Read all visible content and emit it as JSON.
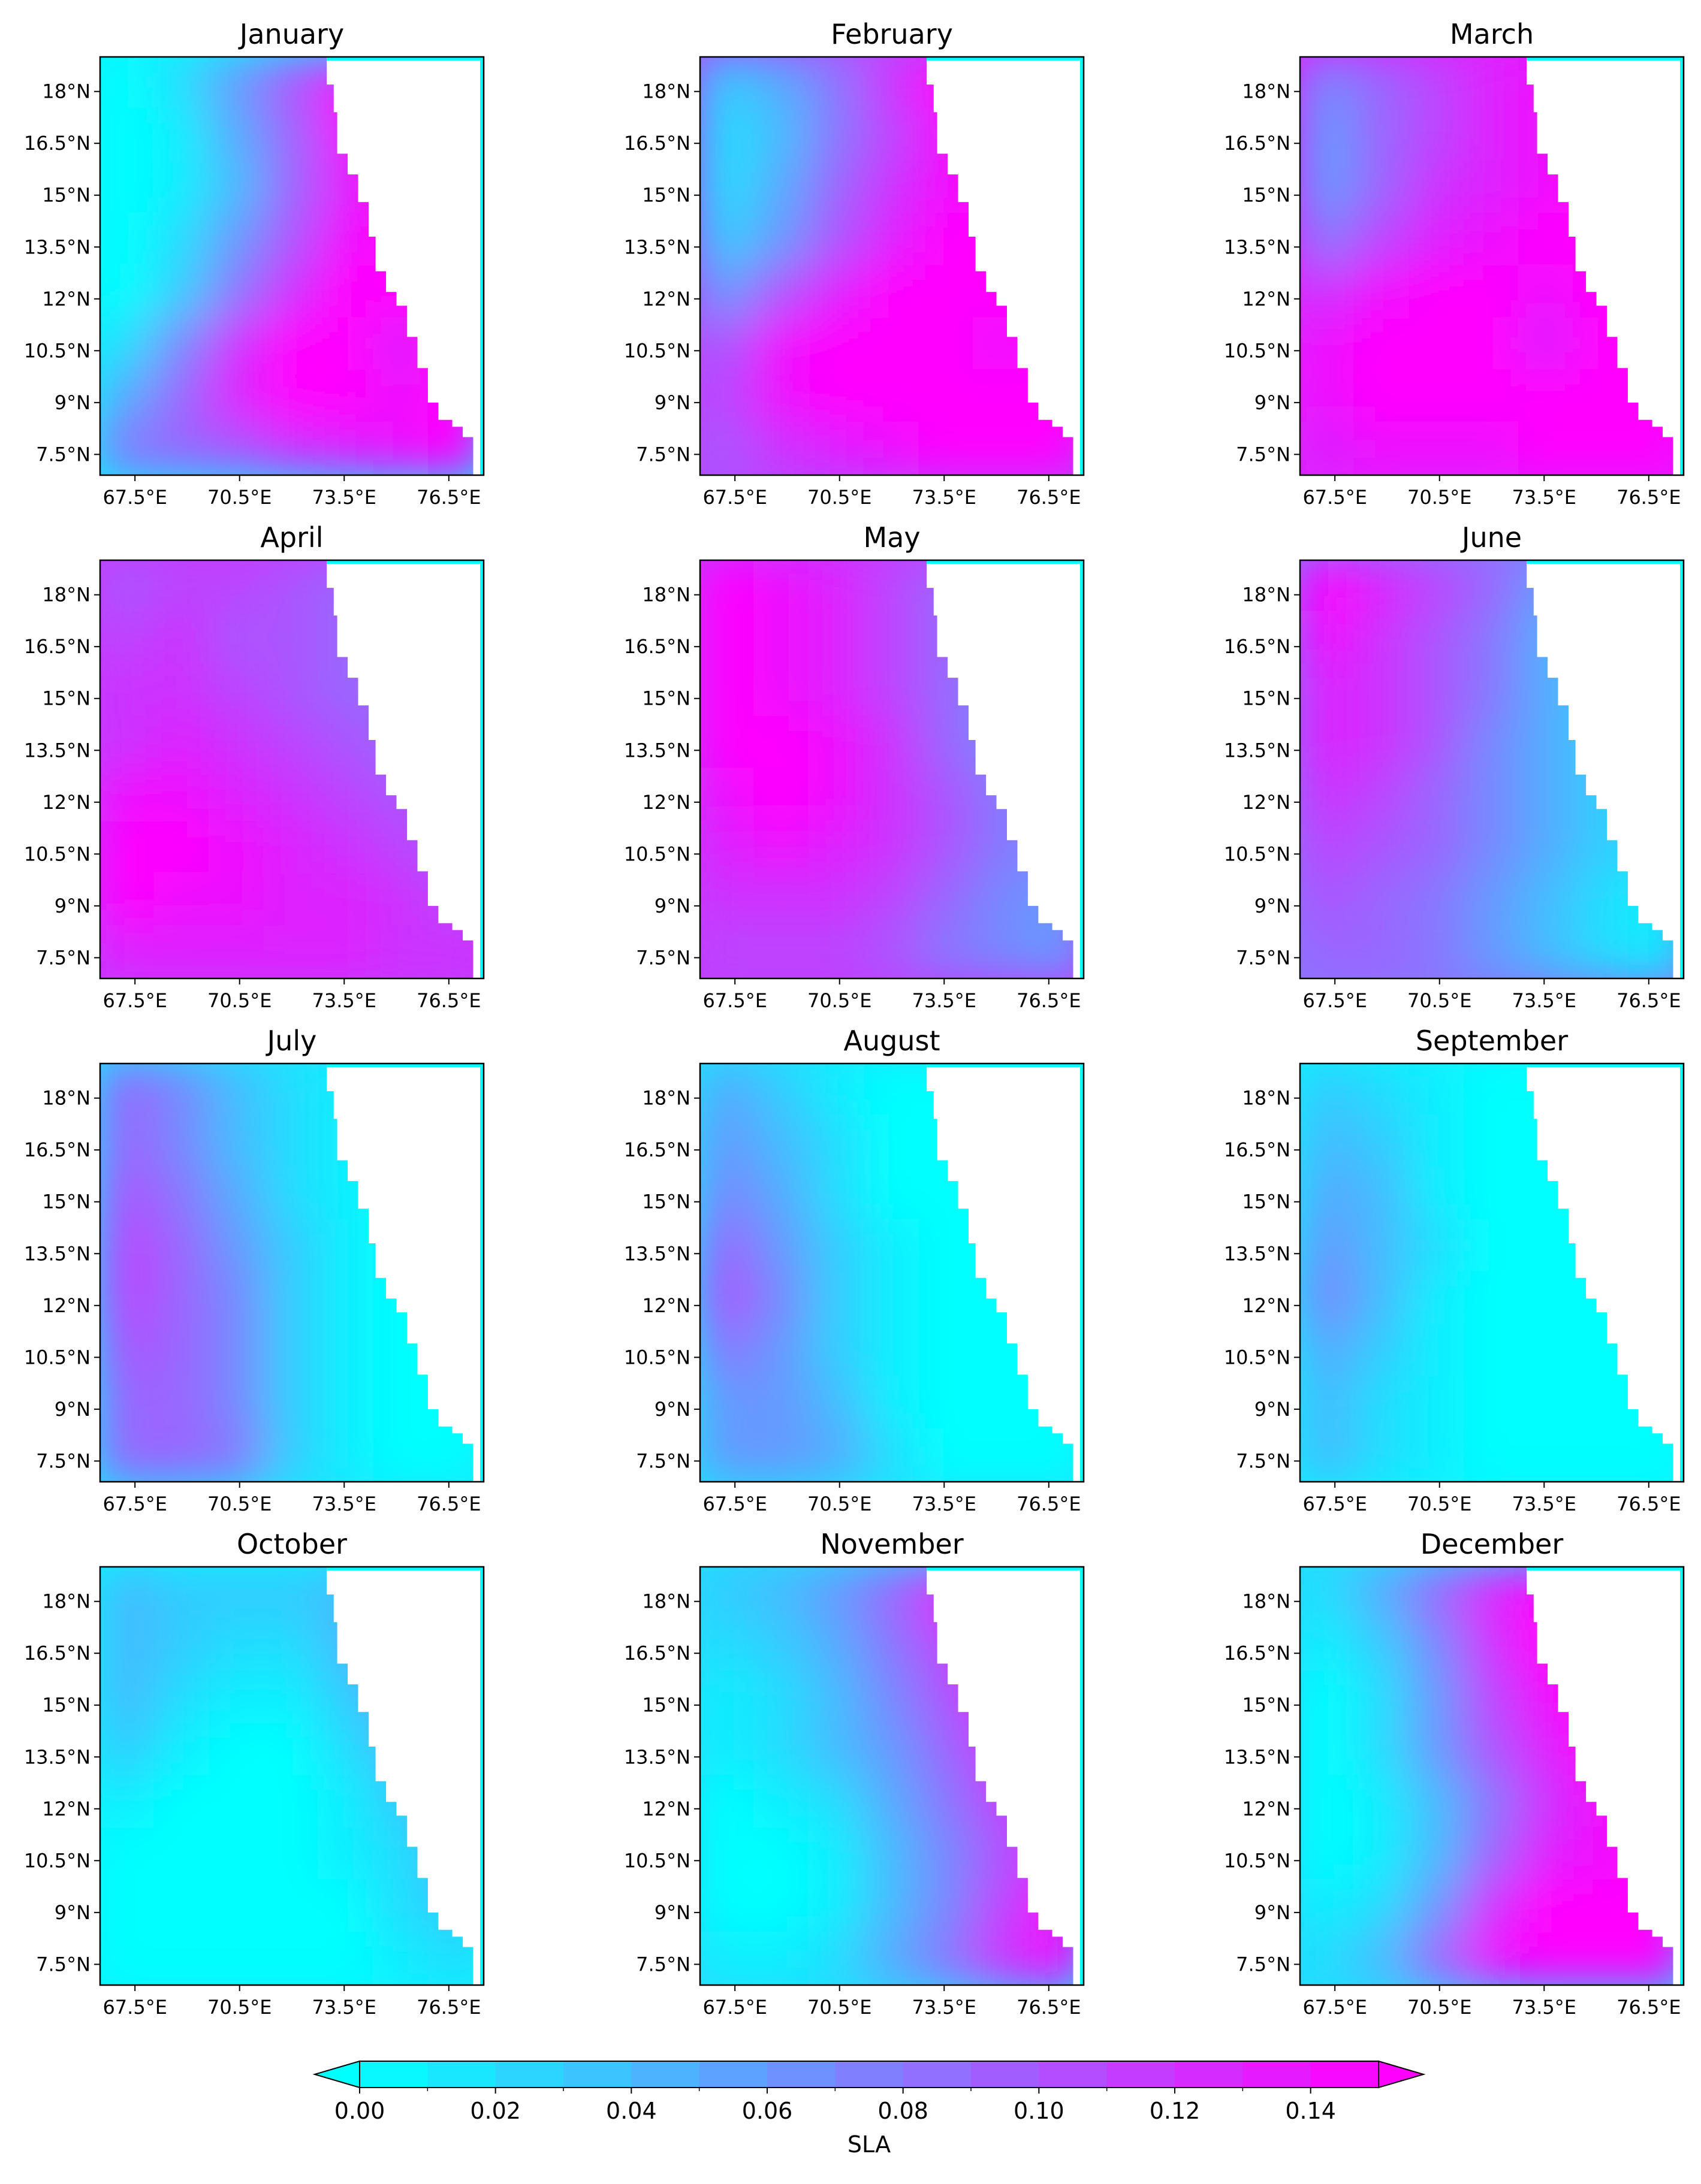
{
  "chart_data": {
    "type": "heatmap",
    "variable_label": "SLA",
    "colormap": {
      "low": "#00ffff",
      "high": "#ff00ff",
      "name": "cool"
    },
    "land_color": "#ffffff",
    "x_tick_labels": [
      "67.5°E",
      "70.5°E",
      "73.5°E",
      "76.5°E"
    ],
    "x_ticks": [
      67.5,
      70.5,
      73.5,
      76.5
    ],
    "y_tick_labels": [
      "7.5°N",
      "9°N",
      "10.5°N",
      "12°N",
      "13.5°N",
      "15°N",
      "16.5°N",
      "18°N"
    ],
    "y_ticks": [
      7.5,
      9,
      10.5,
      12,
      13.5,
      15,
      16.5,
      18
    ],
    "lon_range": [
      66.5,
      77.5
    ],
    "lat_range": [
      6.9,
      19
    ],
    "colorbar": {
      "label": "SLA",
      "range": [
        0.0,
        0.15
      ],
      "ticks": [
        0.0,
        0.02,
        0.04,
        0.06,
        0.08,
        0.1,
        0.12,
        0.14
      ],
      "tick_labels": [
        "0.00",
        "0.02",
        "0.04",
        "0.06",
        "0.08",
        "0.10",
        "0.12",
        "0.14"
      ],
      "extend": "both"
    },
    "panels": [
      {
        "title": "January",
        "approx_sla": [
          [
            0.0,
            0.02,
            0.06,
            0.1,
            0.14,
            0.15,
            0.15
          ],
          [
            0.0,
            0.01,
            0.05,
            0.09,
            0.14,
            0.15,
            0.15
          ],
          [
            0.0,
            0.01,
            0.04,
            0.09,
            0.13,
            0.15,
            0.15
          ],
          [
            0.0,
            0.02,
            0.06,
            0.1,
            0.14,
            0.15,
            0.15
          ],
          [
            0.0,
            0.03,
            0.08,
            0.12,
            0.15,
            0.15,
            0.15
          ],
          [
            0.02,
            0.07,
            0.12,
            0.15,
            0.15,
            0.13,
            0.15
          ],
          [
            0.05,
            0.09,
            0.13,
            0.15,
            0.15,
            0.14,
            0.15
          ],
          [
            0.08,
            0.09,
            0.1,
            0.12,
            0.13,
            0.14,
            0.15
          ]
        ]
      },
      {
        "title": "February",
        "approx_sla": [
          [
            0.03,
            0.05,
            0.08,
            0.12,
            0.15,
            0.15,
            0.15
          ],
          [
            0.02,
            0.04,
            0.08,
            0.11,
            0.14,
            0.15,
            0.15
          ],
          [
            0.02,
            0.05,
            0.09,
            0.12,
            0.14,
            0.15,
            0.15
          ],
          [
            0.03,
            0.06,
            0.1,
            0.13,
            0.15,
            0.15,
            0.15
          ],
          [
            0.06,
            0.1,
            0.13,
            0.15,
            0.15,
            0.15,
            0.15
          ],
          [
            0.1,
            0.14,
            0.15,
            0.15,
            0.15,
            0.14,
            0.15
          ],
          [
            0.11,
            0.14,
            0.15,
            0.15,
            0.15,
            0.15,
            0.15
          ],
          [
            0.1,
            0.12,
            0.13,
            0.14,
            0.15,
            0.15,
            0.15
          ]
        ]
      },
      {
        "title": "March",
        "approx_sla": [
          [
            0.07,
            0.09,
            0.11,
            0.13,
            0.14,
            0.15,
            0.15
          ],
          [
            0.06,
            0.09,
            0.11,
            0.13,
            0.14,
            0.15,
            0.15
          ],
          [
            0.06,
            0.09,
            0.12,
            0.13,
            0.14,
            0.15,
            0.15
          ],
          [
            0.08,
            0.11,
            0.13,
            0.14,
            0.15,
            0.15,
            0.15
          ],
          [
            0.12,
            0.14,
            0.15,
            0.15,
            0.14,
            0.15,
            0.15
          ],
          [
            0.14,
            0.15,
            0.15,
            0.15,
            0.13,
            0.15,
            0.15
          ],
          [
            0.14,
            0.15,
            0.15,
            0.15,
            0.15,
            0.15,
            0.15
          ],
          [
            0.13,
            0.14,
            0.14,
            0.14,
            0.15,
            0.15,
            0.15
          ]
        ]
      },
      {
        "title": "April",
        "approx_sla": [
          [
            0.1,
            0.11,
            0.11,
            0.1,
            0.09,
            0.09,
            0.09
          ],
          [
            0.11,
            0.12,
            0.1,
            0.1,
            0.09,
            0.09,
            0.09
          ],
          [
            0.12,
            0.12,
            0.11,
            0.1,
            0.09,
            0.09,
            0.09
          ],
          [
            0.12,
            0.13,
            0.12,
            0.11,
            0.1,
            0.09,
            0.09
          ],
          [
            0.14,
            0.14,
            0.13,
            0.12,
            0.11,
            0.1,
            0.1
          ],
          [
            0.15,
            0.15,
            0.14,
            0.13,
            0.12,
            0.11,
            0.1
          ],
          [
            0.15,
            0.14,
            0.14,
            0.13,
            0.13,
            0.12,
            0.11
          ],
          [
            0.13,
            0.13,
            0.13,
            0.13,
            0.13,
            0.12,
            0.12
          ]
        ]
      },
      {
        "title": "May",
        "approx_sla": [
          [
            0.15,
            0.14,
            0.13,
            0.11,
            0.09,
            0.08,
            0.07
          ],
          [
            0.15,
            0.14,
            0.13,
            0.11,
            0.09,
            0.08,
            0.07
          ],
          [
            0.15,
            0.14,
            0.13,
            0.11,
            0.09,
            0.07,
            0.07
          ],
          [
            0.15,
            0.15,
            0.14,
            0.12,
            0.09,
            0.07,
            0.07
          ],
          [
            0.14,
            0.15,
            0.14,
            0.12,
            0.1,
            0.08,
            0.07
          ],
          [
            0.13,
            0.14,
            0.13,
            0.12,
            0.1,
            0.08,
            0.07
          ],
          [
            0.12,
            0.12,
            0.12,
            0.11,
            0.09,
            0.07,
            0.06
          ],
          [
            0.11,
            0.11,
            0.11,
            0.1,
            0.08,
            0.07,
            0.06
          ]
        ]
      },
      {
        "title": "June",
        "approx_sla": [
          [
            0.15,
            0.13,
            0.11,
            0.09,
            0.06,
            0.03,
            0.02
          ],
          [
            0.14,
            0.12,
            0.1,
            0.08,
            0.05,
            0.03,
            0.02
          ],
          [
            0.13,
            0.12,
            0.1,
            0.08,
            0.05,
            0.03,
            0.02
          ],
          [
            0.13,
            0.12,
            0.1,
            0.07,
            0.05,
            0.03,
            0.02
          ],
          [
            0.12,
            0.11,
            0.09,
            0.07,
            0.05,
            0.03,
            0.02
          ],
          [
            0.11,
            0.1,
            0.09,
            0.07,
            0.05,
            0.03,
            0.02
          ],
          [
            0.1,
            0.09,
            0.08,
            0.06,
            0.04,
            0.02,
            0.01
          ],
          [
            0.09,
            0.09,
            0.08,
            0.06,
            0.04,
            0.02,
            0.01
          ]
        ]
      },
      {
        "title": "July",
        "approx_sla": [
          [
            0.09,
            0.07,
            0.04,
            0.02,
            0.01,
            0.0,
            0.0
          ],
          [
            0.09,
            0.07,
            0.04,
            0.02,
            0.01,
            0.0,
            0.0
          ],
          [
            0.1,
            0.08,
            0.05,
            0.02,
            0.01,
            0.0,
            0.0
          ],
          [
            0.11,
            0.09,
            0.06,
            0.03,
            0.01,
            0.0,
            0.0
          ],
          [
            0.11,
            0.09,
            0.07,
            0.03,
            0.01,
            0.0,
            0.0
          ],
          [
            0.1,
            0.09,
            0.07,
            0.03,
            0.01,
            0.0,
            0.0
          ],
          [
            0.09,
            0.09,
            0.07,
            0.03,
            0.01,
            0.0,
            0.0
          ],
          [
            0.09,
            0.09,
            0.08,
            0.03,
            0.01,
            0.0,
            0.0
          ]
        ]
      },
      {
        "title": "August",
        "approx_sla": [
          [
            0.05,
            0.03,
            0.01,
            0.0,
            0.0,
            0.0,
            0.0
          ],
          [
            0.06,
            0.04,
            0.02,
            0.0,
            0.0,
            0.0,
            0.0
          ],
          [
            0.07,
            0.05,
            0.02,
            0.0,
            0.0,
            0.0,
            0.0
          ],
          [
            0.09,
            0.06,
            0.03,
            0.01,
            0.0,
            0.0,
            0.0
          ],
          [
            0.1,
            0.07,
            0.03,
            0.01,
            0.0,
            0.0,
            0.0
          ],
          [
            0.08,
            0.06,
            0.03,
            0.01,
            0.0,
            0.0,
            0.0
          ],
          [
            0.06,
            0.06,
            0.04,
            0.01,
            0.0,
            0.0,
            0.0
          ],
          [
            0.06,
            0.06,
            0.05,
            0.02,
            0.0,
            0.0,
            0.0
          ]
        ]
      },
      {
        "title": "September",
        "approx_sla": [
          [
            0.03,
            0.02,
            0.01,
            0.0,
            0.0,
            0.0,
            0.0
          ],
          [
            0.04,
            0.03,
            0.01,
            0.0,
            0.0,
            0.0,
            0.0
          ],
          [
            0.05,
            0.04,
            0.01,
            0.0,
            0.0,
            0.0,
            0.0
          ],
          [
            0.06,
            0.04,
            0.02,
            0.0,
            0.0,
            0.0,
            0.0
          ],
          [
            0.07,
            0.04,
            0.01,
            0.0,
            0.0,
            0.0,
            0.0
          ],
          [
            0.05,
            0.03,
            0.01,
            0.0,
            0.0,
            0.0,
            0.0
          ],
          [
            0.04,
            0.02,
            0.01,
            0.0,
            0.0,
            0.0,
            0.0
          ],
          [
            0.04,
            0.02,
            0.01,
            0.0,
            0.0,
            0.0,
            0.0
          ]
        ]
      },
      {
        "title": "October",
        "approx_sla": [
          [
            0.04,
            0.03,
            0.03,
            0.03,
            0.04,
            0.05,
            0.05
          ],
          [
            0.04,
            0.03,
            0.02,
            0.02,
            0.04,
            0.05,
            0.05
          ],
          [
            0.04,
            0.02,
            0.01,
            0.01,
            0.03,
            0.05,
            0.05
          ],
          [
            0.03,
            0.01,
            0.0,
            0.0,
            0.02,
            0.04,
            0.05
          ],
          [
            0.01,
            0.0,
            0.0,
            0.0,
            0.01,
            0.03,
            0.04
          ],
          [
            0.0,
            0.0,
            0.0,
            0.0,
            0.01,
            0.02,
            0.04
          ],
          [
            0.0,
            0.0,
            0.0,
            0.0,
            0.0,
            0.02,
            0.03
          ],
          [
            0.0,
            0.0,
            0.0,
            0.0,
            0.0,
            0.01,
            0.02
          ]
        ]
      },
      {
        "title": "November",
        "approx_sla": [
          [
            0.03,
            0.04,
            0.06,
            0.09,
            0.13,
            0.14,
            0.14
          ],
          [
            0.02,
            0.03,
            0.05,
            0.08,
            0.11,
            0.14,
            0.14
          ],
          [
            0.01,
            0.02,
            0.04,
            0.07,
            0.1,
            0.13,
            0.14
          ],
          [
            0.01,
            0.02,
            0.04,
            0.06,
            0.09,
            0.12,
            0.14
          ],
          [
            0.0,
            0.01,
            0.02,
            0.05,
            0.08,
            0.11,
            0.13
          ],
          [
            0.0,
            0.0,
            0.01,
            0.04,
            0.07,
            0.1,
            0.13
          ],
          [
            0.0,
            0.0,
            0.01,
            0.04,
            0.07,
            0.11,
            0.14
          ],
          [
            0.01,
            0.01,
            0.02,
            0.05,
            0.08,
            0.12,
            0.14
          ]
        ]
      },
      {
        "title": "December",
        "approx_sla": [
          [
            0.02,
            0.05,
            0.09,
            0.13,
            0.15,
            0.15,
            0.15
          ],
          [
            0.01,
            0.03,
            0.07,
            0.12,
            0.15,
            0.15,
            0.15
          ],
          [
            0.0,
            0.02,
            0.06,
            0.11,
            0.14,
            0.15,
            0.15
          ],
          [
            0.0,
            0.02,
            0.06,
            0.1,
            0.13,
            0.15,
            0.15
          ],
          [
            0.0,
            0.01,
            0.04,
            0.08,
            0.12,
            0.14,
            0.15
          ],
          [
            0.0,
            0.01,
            0.04,
            0.09,
            0.13,
            0.14,
            0.15
          ],
          [
            0.01,
            0.02,
            0.06,
            0.12,
            0.15,
            0.15,
            0.15
          ],
          [
            0.02,
            0.04,
            0.09,
            0.14,
            0.15,
            0.15,
            0.15
          ]
        ]
      }
    ]
  }
}
